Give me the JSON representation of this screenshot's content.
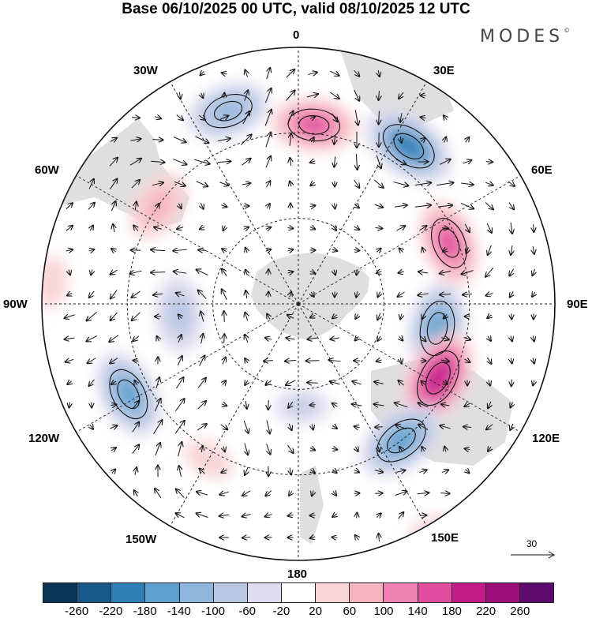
{
  "title": "Base 06/10/2025 00 UTC, valid 08/10/2025 12 UTC",
  "brand": "MODES",
  "brand_mark": "©",
  "labels": {
    "lon_0": "0",
    "lon_30e": "30E",
    "lon_60e": "60E",
    "lon_90e": "90E",
    "lon_120e": "120E",
    "lon_150e": "150E",
    "lon_180": "180",
    "lon_150w": "150W",
    "lon_120w": "120W",
    "lon_90w": "90W",
    "lon_60w": "60W",
    "lon_30w": "30W"
  },
  "reference_vector": "30",
  "colorbar": {
    "colors": [
      "#0b3556",
      "#175a8a",
      "#2e7fb6",
      "#5da0cf",
      "#8fb7dd",
      "#b8c8e3",
      "#dedcee",
      "#ffffff",
      "#f9d6d8",
      "#f6b3c2",
      "#ef82b1",
      "#e04d9f",
      "#c41b8b",
      "#9a0f7a",
      "#5e0a6e"
    ],
    "ticks": [
      "-260",
      "-220",
      "-180",
      "-140",
      "-100",
      "-60",
      "-20",
      "20",
      "60",
      "100",
      "140",
      "180",
      "220",
      "260"
    ]
  },
  "anomaly_centers": [
    {
      "lon": 5,
      "colat": 42,
      "value": 150
    },
    {
      "lon": 35,
      "colat": 45,
      "value": -200
    },
    {
      "lon": 68,
      "colat": 38,
      "value": 150
    },
    {
      "lon": 100,
      "colat": 33,
      "value": -180
    },
    {
      "lon": 118,
      "colat": 37,
      "value": 210
    },
    {
      "lon": 143,
      "colat": 40,
      "value": -180
    },
    {
      "lon": -20,
      "colat": 48,
      "value": -130
    },
    {
      "lon": -55,
      "colat": 40,
      "value": 80
    },
    {
      "lon": -95,
      "colat": 28,
      "value": -100
    },
    {
      "lon": -118,
      "colat": 45,
      "value": -160
    },
    {
      "lon": -85,
      "colat": 58,
      "value": 50
    },
    {
      "lon": 178,
      "colat": 24,
      "value": -70
    },
    {
      "lon": -150,
      "colat": 42,
      "value": 50
    },
    {
      "lon": 150,
      "colat": 62,
      "value": 40
    }
  ]
}
